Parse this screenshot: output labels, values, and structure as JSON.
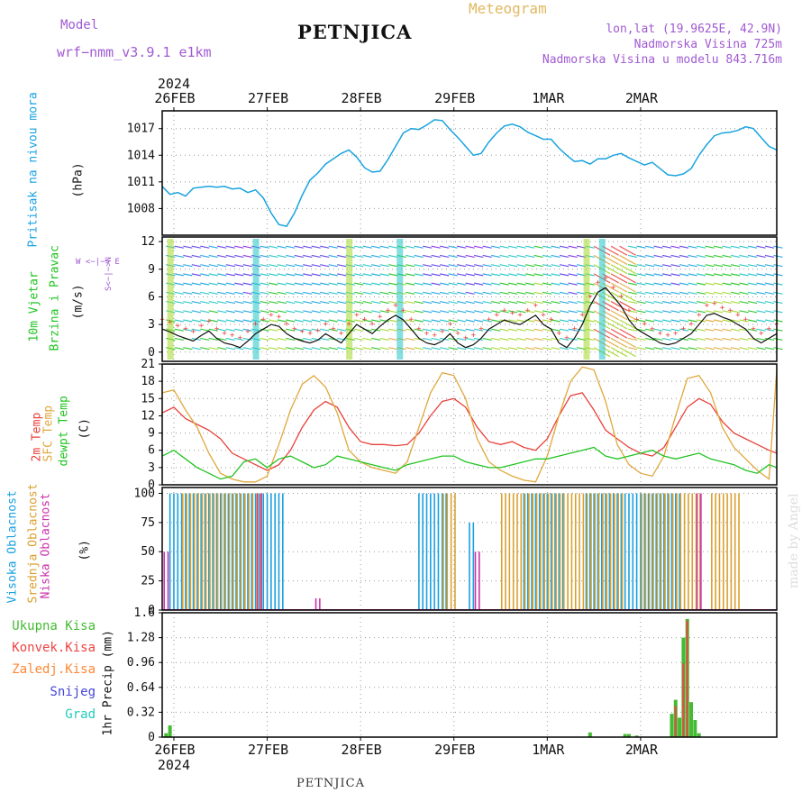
{
  "header": {
    "model_label": "Model",
    "model_name": "wrf−nmm_v3.9.1 e1km",
    "station": "PETNJICA",
    "product": "Meteogram",
    "coords": "lon,lat (19.9625E, 42.9N)",
    "elevation": "Nadmorska Visina 725m",
    "model_elevation": "Nadmorska Visina u modelu 843.716m"
  },
  "footer": {
    "station": "PETNJICA",
    "credit": "made by Angel"
  },
  "colors": {
    "pressure": "#1aa3e0",
    "t2m": "#e8413b",
    "sfc": "#e0a83c",
    "dewpt": "#22c422",
    "high_cloud": "#19a0e0",
    "mid_cloud": "#d9a030",
    "low_cloud": "#cc33aa",
    "total_precip": "#44bb33",
    "conv_precip": "#ee4444",
    "frz_precip": "#ff8833",
    "snow": "#4444dd",
    "hail": "#22ccbb",
    "wind_purple": "#8a2be2"
  },
  "axis": {
    "year_top": "2024",
    "year_bottom": "2024",
    "days": [
      "26FEB",
      "27FEB",
      "28FEB",
      "29FEB",
      "1MAR",
      "2MAR"
    ]
  },
  "panels": {
    "pressure": {
      "label": "Pritisak na nivou mora",
      "unit": "(hPa)",
      "ticks": [
        "1017",
        "1014",
        "1011",
        "1008"
      ]
    },
    "wind": {
      "label1": "10m Vjetar",
      "label2": "Brzina i Pravac",
      "unit": "(m/s)",
      "ticks": [
        "12",
        "9",
        "6",
        "3",
        "0"
      ],
      "compass": "W <−|−> E",
      "compass_v": "S<−|−>N"
    },
    "temp": {
      "label1": "2m Temp",
      "label2": "SFC Temp",
      "label3": "dewpt Temp",
      "unit": "(C)",
      "ticks": [
        "21",
        "18",
        "15",
        "12",
        "9",
        "6",
        "3",
        "0"
      ]
    },
    "cloud": {
      "label1": "Visoka Oblacnost",
      "label2": "Srednja Oblacnost",
      "label3": "Niska Oblacnost",
      "unit": "(%)",
      "ticks": [
        "100",
        "75",
        "50",
        "25",
        "0"
      ]
    },
    "precip": {
      "unit": "1hr Precip (mm)",
      "ticks": [
        "1.6",
        "1.28",
        "0.96",
        "0.64",
        "0.32",
        "0"
      ],
      "legend": [
        "Ukupna Kisa",
        "Konvek.Kisa",
        "Zaledj.Kisa",
        "Snijeg",
        "Grad"
      ]
    }
  },
  "chart_data": [
    {
      "type": "line",
      "name": "pressure",
      "x_unit": "hours from 26FEB 00UTC",
      "ylim": [
        1005,
        1019
      ],
      "series": [
        {
          "x": [
            -3,
            -1,
            1,
            3,
            5,
            7,
            9,
            11,
            13,
            15,
            17,
            19,
            21,
            23,
            25,
            27,
            29,
            31,
            33,
            35,
            37,
            39,
            41,
            43,
            45,
            47,
            49,
            51,
            53,
            55,
            57,
            59,
            61,
            63,
            65,
            67,
            69,
            71,
            73,
            75,
            77,
            79,
            81,
            83,
            85,
            87,
            89,
            91,
            93,
            95,
            97,
            99,
            101,
            103,
            105,
            107,
            109,
            111,
            113,
            115,
            117,
            119,
            121,
            123,
            125,
            127,
            129,
            131,
            133,
            135,
            137,
            139,
            141,
            143,
            145,
            147,
            149,
            151,
            153,
            155
          ],
          "values": [
            1010.5,
            1009.6,
            1009.8,
            1009.4,
            1010.3,
            1010.4,
            1010.5,
            1010.4,
            1010.5,
            1010.2,
            1010.3,
            1009.8,
            1010.1,
            1009.2,
            1007.5,
            1006.2,
            1006.0,
            1007.5,
            1009.5,
            1011.2,
            1012.0,
            1013.0,
            1013.6,
            1014.2,
            1014.6,
            1013.8,
            1012.6,
            1012.1,
            1012.2,
            1013.5,
            1015.0,
            1016.5,
            1017.0,
            1016.9,
            1017.4,
            1018.0,
            1017.9,
            1016.9,
            1016.0,
            1015.0,
            1014.0,
            1014.2,
            1015.5,
            1016.5,
            1017.3,
            1017.5,
            1017.2,
            1016.6,
            1016.2,
            1015.8,
            1015.8,
            1014.8,
            1014.0,
            1013.3,
            1013.4,
            1013.0,
            1013.6,
            1013.6,
            1014.0,
            1014.2,
            1013.7,
            1013.3,
            1012.9,
            1013.2,
            1012.5,
            1011.8,
            1011.7,
            1011.9,
            1012.5,
            1014.0,
            1015.2,
            1016.2,
            1016.5,
            1016.6,
            1016.8,
            1017.2,
            1017.0,
            1016.0,
            1015.0,
            1014.6
          ]
        }
      ]
    },
    {
      "type": "line",
      "name": "wind_speed",
      "x_unit": "hours from 26FEB 00UTC",
      "ylim": [
        -1,
        12.5
      ],
      "series": [
        {
          "x": [
            -3,
            -1,
            1,
            3,
            5,
            7,
            9,
            11,
            13,
            15,
            17,
            19,
            21,
            23,
            25,
            27,
            29,
            31,
            33,
            35,
            37,
            39,
            41,
            43,
            45,
            47,
            49,
            51,
            53,
            55,
            57,
            59,
            61,
            63,
            65,
            67,
            69,
            71,
            73,
            75,
            77,
            79,
            81,
            83,
            85,
            87,
            89,
            91,
            93,
            95,
            97,
            99,
            101,
            103,
            105,
            107,
            109,
            111,
            113,
            115,
            117,
            119,
            121,
            123,
            125,
            127,
            129,
            131,
            133,
            135,
            137,
            139,
            141,
            143,
            145,
            147,
            149,
            151,
            153,
            155
          ],
          "values": [
            2.5,
            2.2,
            1.8,
            1.5,
            1.2,
            1.8,
            2.3,
            1.5,
            1.0,
            0.8,
            0.5,
            1.2,
            2.0,
            2.5,
            3.0,
            2.8,
            2.0,
            1.5,
            1.2,
            1.0,
            1.3,
            2.0,
            1.5,
            1.0,
            2.0,
            3.0,
            2.5,
            2.0,
            2.8,
            3.5,
            4.0,
            3.5,
            2.5,
            1.5,
            1.0,
            0.8,
            1.2,
            2.0,
            1.0,
            0.5,
            0.8,
            1.5,
            2.5,
            3.0,
            3.5,
            3.2,
            3.0,
            3.5,
            4.0,
            3.0,
            2.5,
            1.0,
            0.5,
            1.5,
            3.0,
            5.0,
            6.5,
            7.0,
            6.0,
            5.0,
            3.5,
            2.5,
            2.0,
            1.5,
            1.0,
            0.8,
            1.0,
            1.5,
            2.0,
            3.0,
            4.0,
            4.2,
            3.8,
            3.5,
            3.0,
            2.5,
            1.5,
            1.0,
            1.5,
            2.0
          ]
        }
      ]
    },
    {
      "type": "line",
      "name": "temperature",
      "x_unit": "hours from 26FEB 00UTC",
      "ylim": [
        0,
        21
      ],
      "series": [
        {
          "name": "2m Temp",
          "x": [
            -3,
            0,
            3,
            6,
            9,
            12,
            15,
            18,
            21,
            24,
            27,
            30,
            33,
            36,
            39,
            42,
            45,
            48,
            51,
            54,
            57,
            60,
            63,
            66,
            69,
            72,
            75,
            78,
            81,
            84,
            87,
            90,
            93,
            96,
            99,
            102,
            105,
            108,
            111,
            114,
            117,
            120,
            123,
            126,
            129,
            132,
            135,
            138,
            141,
            144,
            147,
            150,
            153,
            155
          ],
          "values": [
            12.5,
            13.5,
            11.5,
            10.5,
            9.5,
            8.0,
            5.5,
            4.5,
            3.5,
            2.5,
            3.5,
            6.0,
            10.0,
            13.0,
            14.5,
            13.5,
            10.0,
            7.5,
            7.0,
            7.0,
            6.8,
            7.0,
            9.0,
            12.0,
            14.5,
            15.0,
            13.5,
            10.0,
            7.5,
            7.0,
            7.5,
            6.5,
            6.0,
            8.0,
            12.0,
            15.5,
            16.0,
            13.0,
            9.5,
            8.0,
            6.5,
            5.5,
            5.0,
            6.5,
            10.0,
            13.5,
            15.0,
            14.0,
            11.0,
            9.0,
            8.0,
            7.0,
            6.0,
            5.5
          ]
        },
        {
          "name": "SFC Temp",
          "x": [
            -3,
            0,
            3,
            6,
            9,
            12,
            15,
            18,
            21,
            24,
            27,
            30,
            33,
            36,
            39,
            42,
            45,
            48,
            51,
            54,
            57,
            60,
            63,
            66,
            69,
            72,
            75,
            78,
            81,
            84,
            87,
            90,
            93,
            96,
            99,
            102,
            105,
            108,
            111,
            114,
            117,
            120,
            123,
            126,
            129,
            132,
            135,
            138,
            141,
            144,
            147,
            150,
            153,
            155
          ],
          "values": [
            16.0,
            16.5,
            13.0,
            10.0,
            5.5,
            2.0,
            1.0,
            0.5,
            0.5,
            1.5,
            7.0,
            13.0,
            17.5,
            19.0,
            17.0,
            12.5,
            6.0,
            4.0,
            3.0,
            2.5,
            2.0,
            4.0,
            10.0,
            16.0,
            19.5,
            19.0,
            15.0,
            8.0,
            4.0,
            2.5,
            1.5,
            0.8,
            0.5,
            5.0,
            12.0,
            18.0,
            20.5,
            20.0,
            14.5,
            7.0,
            3.5,
            2.0,
            1.5,
            5.0,
            12.0,
            18.5,
            19.0,
            16.0,
            10.0,
            6.5,
            4.5,
            2.5,
            1.0,
            20.0
          ]
        },
        {
          "name": "dewpt Temp",
          "x": [
            -3,
            0,
            3,
            6,
            9,
            12,
            15,
            18,
            21,
            24,
            27,
            30,
            33,
            36,
            39,
            42,
            45,
            48,
            51,
            54,
            57,
            60,
            63,
            66,
            69,
            72,
            75,
            78,
            81,
            84,
            87,
            90,
            93,
            96,
            99,
            102,
            105,
            108,
            111,
            114,
            117,
            120,
            123,
            126,
            129,
            132,
            135,
            138,
            141,
            144,
            147,
            150,
            153,
            155
          ],
          "values": [
            5.0,
            6.0,
            4.5,
            3.0,
            2.0,
            1.0,
            1.5,
            4.0,
            4.5,
            3.0,
            4.5,
            5.0,
            4.0,
            3.0,
            3.5,
            5.0,
            4.5,
            4.0,
            3.5,
            3.0,
            2.5,
            3.5,
            4.0,
            4.5,
            5.0,
            5.0,
            4.0,
            3.5,
            3.0,
            3.0,
            3.5,
            4.0,
            4.5,
            4.5,
            5.0,
            5.5,
            6.0,
            6.5,
            5.0,
            4.5,
            5.0,
            5.5,
            6.0,
            5.0,
            4.5,
            5.0,
            5.5,
            4.5,
            4.0,
            3.5,
            2.5,
            2.0,
            3.5,
            3.0
          ]
        }
      ]
    },
    {
      "type": "bar",
      "name": "cloud_cover",
      "x_unit": "hours from 26FEB 00UTC",
      "ylim": [
        0,
        100
      ],
      "series": [
        {
          "name": "Visoka Oblacnost",
          "blocks": [
            [
              -1,
              28,
              100
            ],
            [
              63,
              70,
              100
            ],
            [
              76,
              77,
              75
            ],
            [
              90,
              100,
              100
            ],
            [
              106,
              130,
              100
            ]
          ]
        },
        {
          "name": "Srednja Oblacnost",
          "blocks": [
            [
              2,
              22,
              100
            ],
            [
              69,
              72,
              100
            ],
            [
              84,
              115,
              100
            ],
            [
              120,
              135,
              100
            ],
            [
              138,
              145,
              100
            ]
          ]
        },
        {
          "name": "Niska Oblacnost",
          "blocks": [
            [
              -3,
              -2,
              50
            ],
            [
              21,
              22,
              100
            ],
            [
              36,
              37,
              10
            ],
            [
              77,
              78,
              50
            ],
            [
              134,
              135,
              100
            ]
          ]
        }
      ]
    },
    {
      "type": "bar",
      "name": "precipitation",
      "x_unit": "hours from 26FEB 00UTC",
      "ylim": [
        0,
        1.6
      ],
      "series": [
        {
          "name": "Ukupna Kisa",
          "x": [
            -2,
            -1,
            107,
            116,
            117,
            119,
            128,
            129,
            130,
            131,
            132,
            133,
            134,
            135
          ],
          "values": [
            0.05,
            0.15,
            0.06,
            0.04,
            0.04,
            0.02,
            0.3,
            0.48,
            0.25,
            1.28,
            1.52,
            0.45,
            0.22,
            0.05
          ]
        },
        {
          "name": "Konvek.Kisa",
          "x": [
            129,
            131,
            132
          ],
          "values": [
            0.4,
            0.95,
            1.5
          ]
        }
      ]
    }
  ]
}
